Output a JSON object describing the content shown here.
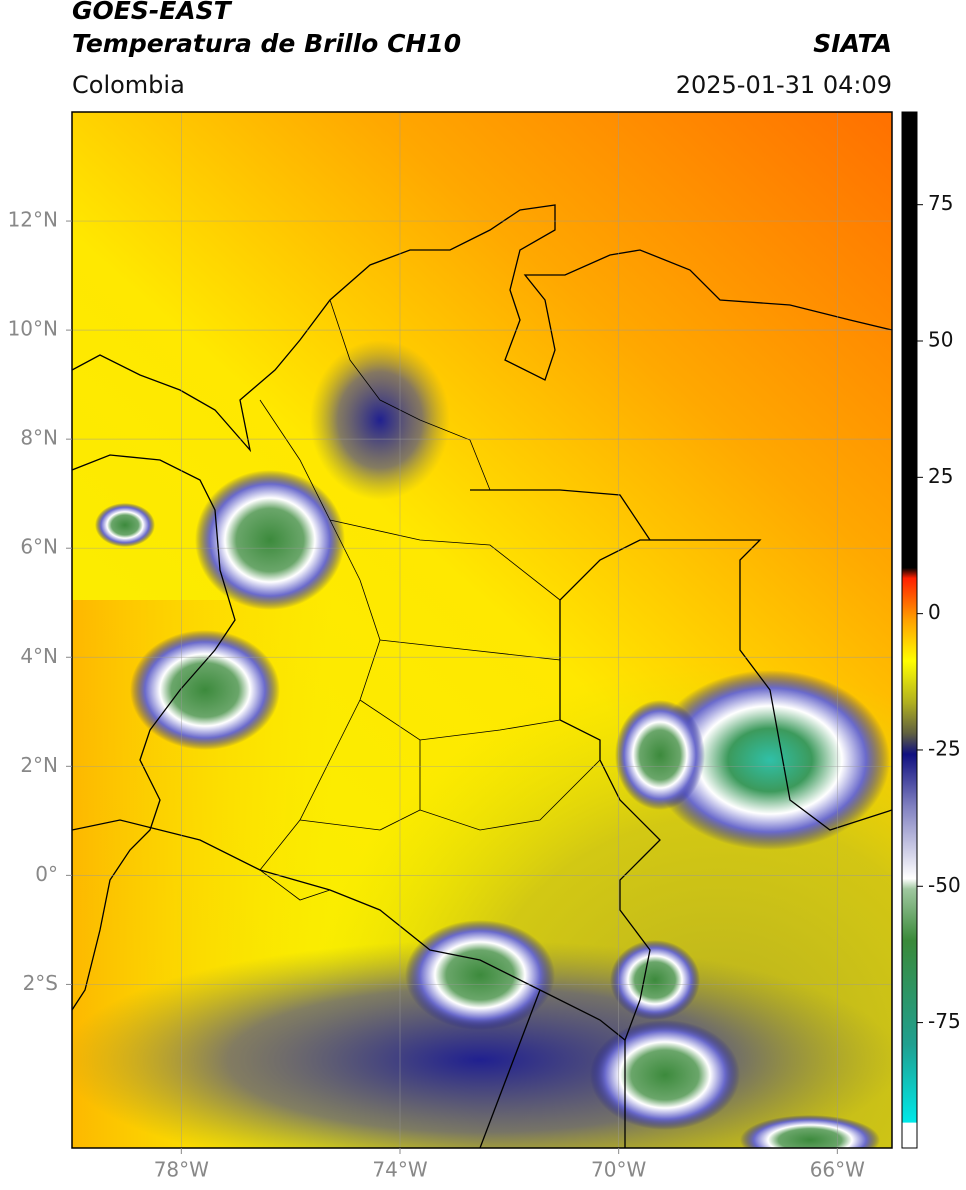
{
  "header": {
    "title": "GOES-EAST",
    "subtitle": "Temperatura de Brillo CH10",
    "source": "SIATA",
    "region": "Colombia",
    "datetime": "2025-01-31 04:09"
  },
  "map": {
    "xlim": [
      -80,
      -65
    ],
    "ylim": [
      -5,
      14
    ],
    "xticks": [
      {
        "value": -78,
        "label": "78°W"
      },
      {
        "value": -74,
        "label": "74°W"
      },
      {
        "value": -70,
        "label": "70°W"
      },
      {
        "value": -66,
        "label": "66°W"
      }
    ],
    "yticks": [
      {
        "value": 12,
        "label": "12°N"
      },
      {
        "value": 10,
        "label": "10°N"
      },
      {
        "value": 8,
        "label": "8°N"
      },
      {
        "value": 6,
        "label": "6°N"
      },
      {
        "value": 4,
        "label": "4°N"
      },
      {
        "value": 2,
        "label": "2°N"
      },
      {
        "value": 0,
        "label": "0°"
      },
      {
        "value": -2,
        "label": "2°S"
      }
    ],
    "grid": true
  },
  "colorbar": {
    "lim": [
      -98,
      92
    ],
    "ticks": [
      75,
      50,
      25,
      0,
      -25,
      -50,
      -75
    ]
  }
}
